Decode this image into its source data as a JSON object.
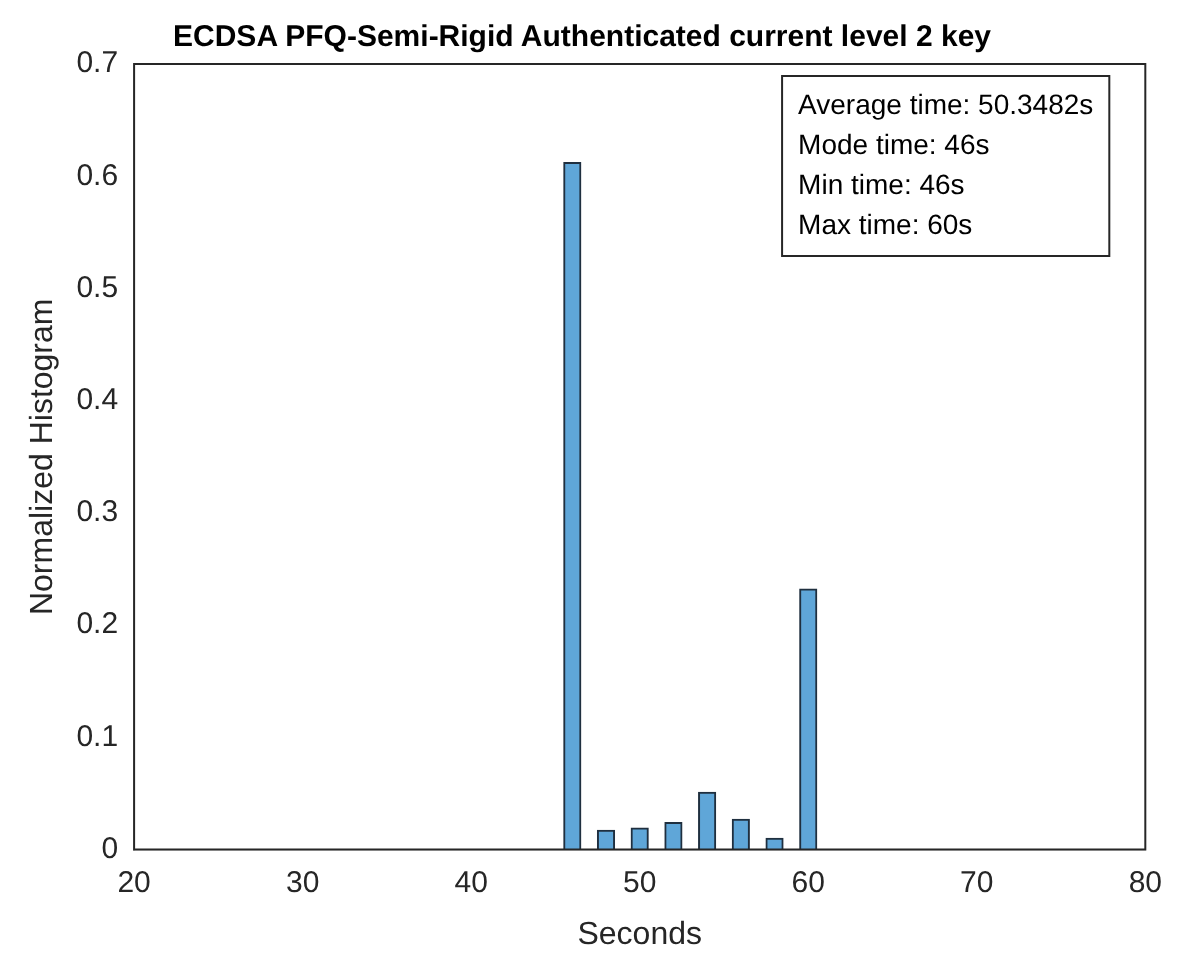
{
  "chart_data": {
    "type": "histogram",
    "title": "ECDSA PFQ-Semi-Rigid Authenticated current level 2 key",
    "xlabel": "Seconds",
    "ylabel": "Normalized Histogram",
    "bins": [
      45.5,
      46.5,
      47.5,
      48.5,
      49.5,
      50.5,
      51.5,
      52.5,
      53.5,
      54.5,
      55.5,
      56.5,
      57.5,
      58.5,
      59.5,
      60.5
    ],
    "values": [
      0.612,
      0,
      0.017,
      0,
      0.019,
      0,
      0.024,
      0,
      0.051,
      0,
      0.027,
      0,
      0.01,
      0,
      0.232
    ],
    "color": "#5fa6d8",
    "xlim": [
      20,
      80
    ],
    "xticks": [
      20,
      30,
      40,
      50,
      60,
      70,
      80
    ],
    "ylim": [
      0,
      0.7
    ],
    "yticks": [
      0,
      0.1,
      0.2,
      0.3,
      0.4,
      0.5,
      0.6,
      0.7
    ],
    "grid": false,
    "legend": false,
    "annotations": [
      "Average time: 50.3482s",
      "Mode time: 46s",
      "Min time: 46s",
      "Max time: 60s"
    ]
  }
}
